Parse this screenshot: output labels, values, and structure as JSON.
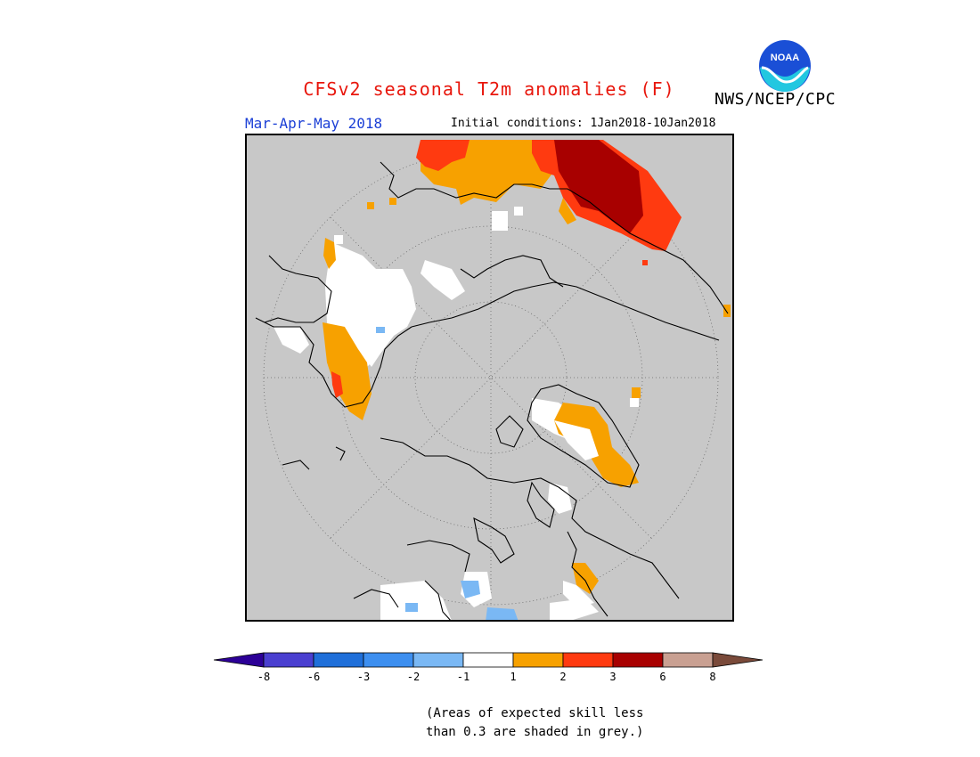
{
  "header": {
    "title": "CFSv2 seasonal T2m anomalies (F)",
    "agency": "NWS/NCEP/CPC",
    "season": "Mar-Apr-May 2018",
    "initial_conditions": "Initial conditions: 1Jan2018-10Jan2018"
  },
  "logo": {
    "text": "NOAA",
    "icon": "noaa-logo-icon"
  },
  "colors": {
    "title": "#e8160c",
    "season": "#1b3fd6",
    "map_background": "#c8c8c8",
    "coastline": "#000000"
  },
  "legend": {
    "ticks": [
      "-8",
      "-6",
      "-3",
      "-2",
      "-1",
      "1",
      "2",
      "3",
      "6",
      "8"
    ],
    "colors": [
      "#2c0097",
      "#4a3fd0",
      "#1f6fd9",
      "#3d8ff0",
      "#7ab8f4",
      "#ffffff",
      "#f7a100",
      "#ff3a10",
      "#a80000",
      "#c9a092",
      "#7a4a3a"
    ],
    "below_color": "#2c0097",
    "above_color": "#7a4a3a"
  },
  "caption": {
    "line1": "(Areas of expected skill less",
    "line2": "than 0.3 are shaded in grey.)"
  }
}
